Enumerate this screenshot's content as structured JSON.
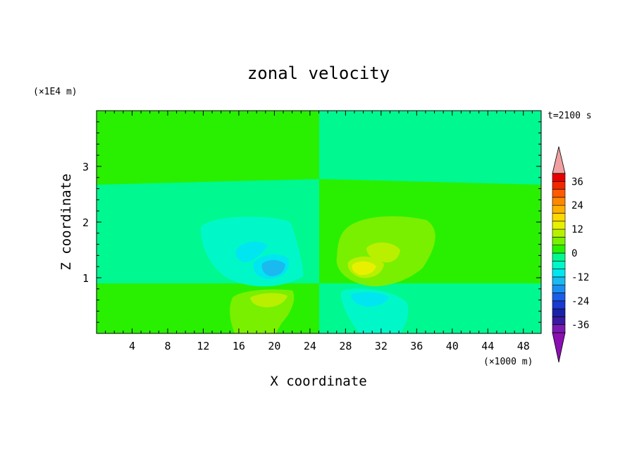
{
  "chart_data": {
    "type": "heatmap",
    "title": "zonal velocity",
    "xlabel": "X coordinate",
    "ylabel": "Z coordinate",
    "x_unit": "(×1000 m)",
    "y_unit": "(×1E4 m)",
    "time_label": "t=2100 s",
    "xlim": [
      0,
      50
    ],
    "ylim": [
      0,
      4
    ],
    "x_ticks": [
      4,
      8,
      12,
      16,
      20,
      24,
      28,
      32,
      36,
      40,
      44,
      48
    ],
    "y_ticks": [
      1,
      2,
      3
    ],
    "colorbar": {
      "levels": [
        -40,
        -36,
        -32,
        -28,
        -24,
        -20,
        -16,
        -12,
        -8,
        -4,
        0,
        4,
        8,
        12,
        16,
        20,
        24,
        28,
        32,
        36,
        40
      ],
      "tick_labels": [
        "36",
        "24",
        "12",
        "0",
        "-12",
        "-24",
        "-36"
      ],
      "colors": [
        "#7a1bb0",
        "#3a1aa0",
        "#1a22a8",
        "#1a3ad0",
        "#1a5ee8",
        "#1a8ef0",
        "#1abaf0",
        "#00e6f0",
        "#00f8c8",
        "#00f890",
        "#28f000",
        "#78f000",
        "#b8f000",
        "#e8f000",
        "#ffd800",
        "#ffb000",
        "#ff8800",
        "#ff5a00",
        "#f02800",
        "#e80000"
      ],
      "over_color": "#f0a0a0",
      "under_color": "#8a10b0"
    },
    "regions": [
      {
        "name": "upper-left",
        "value": 2
      },
      {
        "name": "upper-right",
        "value": -2
      },
      {
        "name": "middle-left",
        "value": -2
      },
      {
        "name": "middle-right",
        "value": 2
      },
      {
        "name": "lower-left",
        "value": 2
      },
      {
        "name": "lower-right",
        "value": -2
      },
      {
        "name": "blob-left-outer",
        "value": -6
      },
      {
        "name": "blob-left-inner",
        "value": -10
      },
      {
        "name": "blob-left-core",
        "value": -14
      },
      {
        "name": "blob-right-outer",
        "value": 6
      },
      {
        "name": "blob-right-inner",
        "value": 10
      },
      {
        "name": "blob-right-core",
        "value": 14
      },
      {
        "name": "bottom-left-outer",
        "value": 6
      },
      {
        "name": "bottom-left-inner",
        "value": 10
      },
      {
        "name": "bottom-right-outer",
        "value": -6
      },
      {
        "name": "bottom-right-inner",
        "value": -10
      }
    ]
  }
}
